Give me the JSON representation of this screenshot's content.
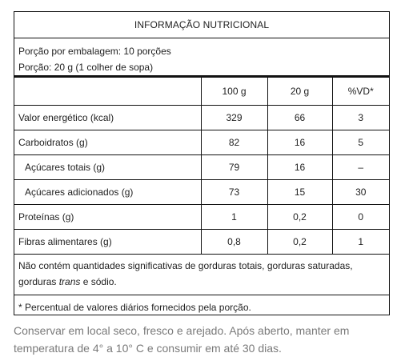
{
  "title": "INFORMAÇÃO NUTRICIONAL",
  "portion": {
    "line1": "Porção por embalagem: 10 porções",
    "line2": "Porção: 20 g (1 colher de sopa)"
  },
  "table": {
    "headers": [
      "",
      "100 g",
      "20 g",
      "%VD*"
    ],
    "rows": [
      {
        "name": "Valor energético (kcal)",
        "v100": "329",
        "v20": "66",
        "vd": "3"
      },
      {
        "name": "Carboidratos (g)",
        "v100": "82",
        "v20": "16",
        "vd": "5"
      },
      {
        "name": "Açúcares totais (g)",
        "v100": "79",
        "v20": "16",
        "vd": "–"
      },
      {
        "name": "Açúcares adicionados (g)",
        "v100": "73",
        "v20": "15",
        "vd": "30"
      },
      {
        "name": "Proteínas (g)",
        "v100": "1",
        "v20": "0,2",
        "vd": "0"
      },
      {
        "name": "Fibras alimentares (g)",
        "v100": "0,8",
        "v20": "0,2",
        "vd": "1"
      }
    ]
  },
  "note1": {
    "line1": "Não contém quantidades significativas de gorduras totais, gorduras saturadas,",
    "line2_pre": "gorduras ",
    "line2_em": "trans",
    "line2_post": " e sódio."
  },
  "note2": "* Percentual de valores diários fornecidos pela porção.",
  "footer": {
    "line1": "Conservar em local seco, fresco e arejado. Após aberto, manter em",
    "line2": "temperatura de 4° a 10° C e consumir em até 30 dias."
  }
}
